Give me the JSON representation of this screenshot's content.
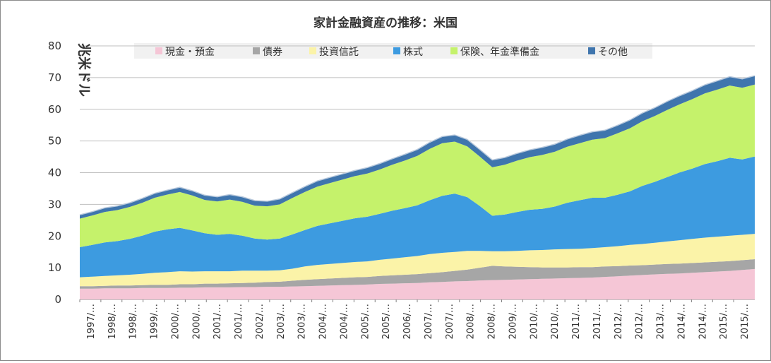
{
  "chart_data": {
    "type": "area",
    "stacked": true,
    "title": "家計金融資産の推移：米国",
    "ylabel": "兆米ドル",
    "xlabel": "",
    "ylim": [
      0,
      80
    ],
    "yticks": [
      0,
      10,
      20,
      30,
      40,
      50,
      60,
      70,
      80
    ],
    "grid": true,
    "legend_position": "top",
    "x_tick_labels": [
      "1997/…",
      "1998/…",
      "1998/…",
      "1999/…",
      "2000/…",
      "2000/…",
      "2001/…",
      "2001/…",
      "2002/…",
      "2003/…",
      "2003/…",
      "2004/…",
      "2004/…",
      "2005/…",
      "2005/…",
      "2006/…",
      "2007/…",
      "2007/…",
      "2008/…",
      "2008/…",
      "2009/…",
      "2010/…",
      "2010/…",
      "2011/…",
      "2011/…",
      "2012/…",
      "2012/…",
      "2013/…",
      "2014/…",
      "2014/…",
      "2015/…",
      "2015/…"
    ],
    "x_tick_stride": 2,
    "series": [
      {
        "name": "現金・預金",
        "color": "#f5c6d6",
        "values": [
          3.4,
          3.4,
          3.5,
          3.5,
          3.5,
          3.6,
          3.6,
          3.6,
          3.7,
          3.7,
          3.8,
          3.8,
          3.8,
          3.9,
          3.9,
          4.0,
          4.0,
          4.1,
          4.2,
          4.3,
          4.4,
          4.5,
          4.6,
          4.7,
          4.9,
          5.0,
          5.1,
          5.2,
          5.4,
          5.5,
          5.7,
          5.8,
          6.0,
          6.1,
          6.2,
          6.3,
          6.4,
          6.5,
          6.6,
          6.7,
          6.8,
          6.9,
          7.1,
          7.3,
          7.5,
          7.7,
          7.9,
          8.1,
          8.2,
          8.4,
          8.6,
          8.8,
          9.0,
          9.3,
          9.6
        ]
      },
      {
        "name": "債券",
        "color": "#a6a6a6",
        "values": [
          0.8,
          0.8,
          0.8,
          0.9,
          0.9,
          0.9,
          1.0,
          1.0,
          1.1,
          1.1,
          1.2,
          1.2,
          1.3,
          1.3,
          1.4,
          1.5,
          1.6,
          1.8,
          2.0,
          2.1,
          2.2,
          2.3,
          2.4,
          2.4,
          2.5,
          2.6,
          2.7,
          2.8,
          2.9,
          3.1,
          3.3,
          3.6,
          4.0,
          4.5,
          4.2,
          4.0,
          3.8,
          3.6,
          3.5,
          3.4,
          3.4,
          3.3,
          3.3,
          3.2,
          3.2,
          3.1,
          3.1,
          3.1,
          3.1,
          3.1,
          3.1,
          3.1,
          3.1,
          3.1,
          3.1
        ]
      },
      {
        "name": "投資信託",
        "color": "#fbf3a8",
        "values": [
          2.8,
          3.0,
          3.1,
          3.2,
          3.4,
          3.6,
          3.8,
          4.0,
          4.1,
          4.0,
          3.9,
          3.9,
          3.8,
          3.9,
          3.8,
          3.6,
          3.6,
          3.8,
          4.2,
          4.5,
          4.6,
          4.7,
          4.8,
          4.9,
          5.1,
          5.3,
          5.5,
          5.7,
          6.0,
          6.1,
          6.0,
          5.9,
          5.3,
          4.6,
          4.8,
          5.0,
          5.3,
          5.5,
          5.7,
          5.8,
          5.8,
          6.0,
          6.1,
          6.3,
          6.5,
          6.7,
          6.9,
          7.1,
          7.4,
          7.6,
          7.8,
          7.9,
          8.0,
          8.0,
          8.0
        ]
      },
      {
        "name": "株式",
        "color": "#3d9be0",
        "values": [
          9.5,
          10.0,
          10.6,
          10.8,
          11.3,
          12.0,
          13.0,
          13.5,
          13.7,
          13.0,
          12.0,
          11.5,
          11.8,
          11.0,
          10.1,
          9.8,
          10.0,
          10.8,
          11.5,
          12.3,
          12.8,
          13.3,
          13.8,
          14.1,
          14.5,
          15.1,
          15.5,
          16.0,
          17.0,
          18.0,
          18.4,
          17.0,
          14.2,
          11.2,
          11.6,
          12.3,
          12.8,
          13.0,
          13.5,
          14.6,
          15.3,
          15.9,
          15.6,
          16.2,
          16.9,
          18.3,
          19.2,
          20.3,
          21.4,
          22.2,
          23.2,
          23.8,
          24.6,
          23.8,
          24.4
        ]
      },
      {
        "name": "保険、年金準備金",
        "color": "#c5f26b",
        "values": [
          9.0,
          9.3,
          9.6,
          9.8,
          10.1,
          10.4,
          10.7,
          11.0,
          11.3,
          11.0,
          10.5,
          10.5,
          10.8,
          10.7,
          10.4,
          10.5,
          10.8,
          11.5,
          12.0,
          12.4,
          12.7,
          13.0,
          13.3,
          13.6,
          14.0,
          14.5,
          15.0,
          15.6,
          16.2,
          16.6,
          16.4,
          16.0,
          15.6,
          15.3,
          15.7,
          16.2,
          16.6,
          17.0,
          17.3,
          17.7,
          18.0,
          18.3,
          18.8,
          19.4,
          19.9,
          20.4,
          20.8,
          21.2,
          21.5,
          21.9,
          22.3,
          22.6,
          22.8,
          22.6,
          22.7
        ]
      },
      {
        "name": "その他",
        "color": "#3f75ad",
        "values": [
          1.2,
          1.2,
          1.3,
          1.3,
          1.3,
          1.4,
          1.4,
          1.4,
          1.5,
          1.5,
          1.5,
          1.5,
          1.6,
          1.6,
          1.6,
          1.6,
          1.7,
          1.7,
          1.7,
          1.8,
          1.8,
          1.8,
          1.8,
          1.9,
          1.9,
          1.9,
          2.0,
          2.0,
          2.1,
          2.1,
          2.1,
          2.2,
          2.2,
          2.3,
          2.3,
          2.3,
          2.3,
          2.4,
          2.4,
          2.4,
          2.5,
          2.5,
          2.5,
          2.5,
          2.6,
          2.6,
          2.6,
          2.7,
          2.7,
          2.7,
          2.7,
          2.8,
          2.8,
          2.8,
          2.8
        ]
      }
    ]
  }
}
